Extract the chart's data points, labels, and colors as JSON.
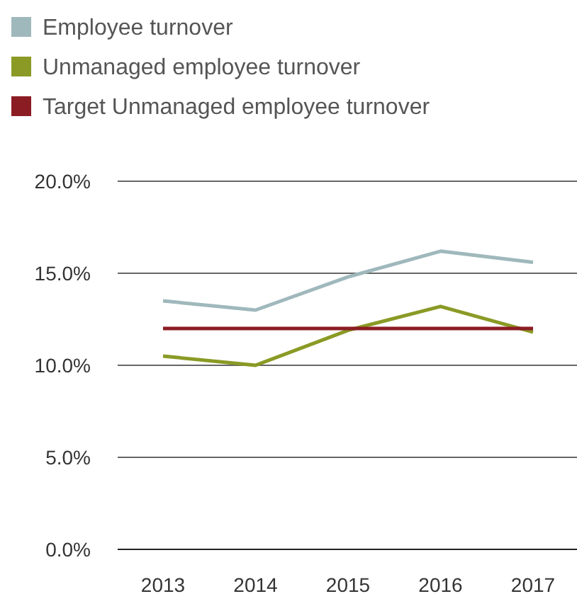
{
  "chart_data": {
    "type": "line",
    "categories": [
      "2013",
      "2014",
      "2015",
      "2016",
      "2017"
    ],
    "series": [
      {
        "name": "Employee turnover",
        "color": "#9fb8bc",
        "values": [
          13.5,
          13.0,
          14.8,
          16.2,
          15.6
        ]
      },
      {
        "name": "Unmanaged employee turnover",
        "color": "#8a9a25",
        "values": [
          10.5,
          10.0,
          11.9,
          13.2,
          11.8
        ]
      },
      {
        "name": "Target Unmanaged employee turnover",
        "color": "#8c1c24",
        "values": [
          12.0,
          12.0,
          12.0,
          12.0,
          12.0
        ]
      }
    ],
    "ylim": [
      0,
      20
    ],
    "yticks": [
      {
        "value": 0,
        "label": "0.0%"
      },
      {
        "value": 5,
        "label": "5.0%"
      },
      {
        "value": 10,
        "label": "10.0%"
      },
      {
        "value": 15,
        "label": "15.0%"
      },
      {
        "value": 20,
        "label": "20.0%"
      }
    ],
    "grid": "y",
    "legend": "top left",
    "marker": "none",
    "line_style": "solid"
  }
}
